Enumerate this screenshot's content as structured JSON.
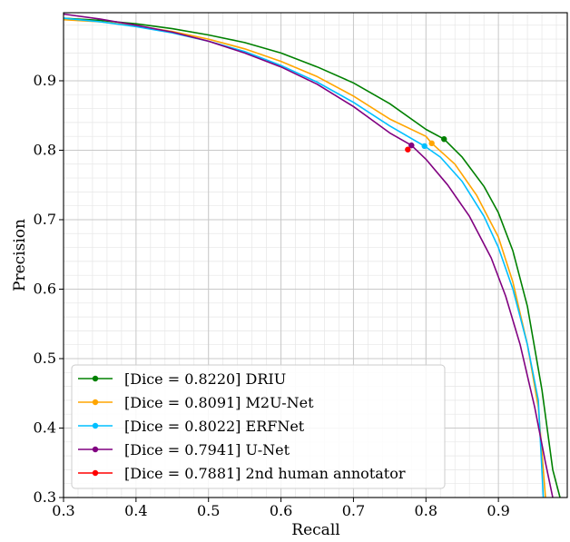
{
  "chart_data": {
    "type": "line",
    "title": "",
    "xlabel": "Recall",
    "ylabel": "Precision",
    "xlim": [
      0.3,
      0.995
    ],
    "ylim": [
      0.3,
      0.998
    ],
    "x_ticks": [
      0.3,
      0.4,
      0.5,
      0.6,
      0.7,
      0.8,
      0.9
    ],
    "x_tick_labels": [
      "0.3",
      "0.4",
      "0.5",
      "0.6",
      "0.7",
      "0.8",
      "0.9"
    ],
    "y_ticks": [
      0.3,
      0.4,
      0.5,
      0.6,
      0.7,
      0.8,
      0.9
    ],
    "y_tick_labels": [
      "0.3",
      "0.4",
      "0.5",
      "0.6",
      "0.7",
      "0.8",
      "0.9"
    ],
    "grid": "major and minor",
    "legend_position": "lower-left",
    "series": [
      {
        "name": "[Dice = 0.8220] DRIU",
        "color": "#008000",
        "x": [
          0.3,
          0.35,
          0.4,
          0.45,
          0.5,
          0.55,
          0.6,
          0.65,
          0.7,
          0.75,
          0.8,
          0.825,
          0.85,
          0.88,
          0.9,
          0.92,
          0.94,
          0.96,
          0.975,
          0.985
        ],
        "y": [
          0.99,
          0.987,
          0.982,
          0.975,
          0.966,
          0.955,
          0.94,
          0.92,
          0.897,
          0.867,
          0.83,
          0.816,
          0.79,
          0.748,
          0.71,
          0.655,
          0.575,
          0.455,
          0.34,
          0.3
        ],
        "operating_point": [
          0.825,
          0.816
        ]
      },
      {
        "name": "[Dice = 0.8091] M2U-Net",
        "color": "#FFA500",
        "x": [
          0.3,
          0.35,
          0.4,
          0.45,
          0.5,
          0.55,
          0.6,
          0.65,
          0.7,
          0.75,
          0.8,
          0.808,
          0.84,
          0.87,
          0.9,
          0.92,
          0.94,
          0.955,
          0.965
        ],
        "y": [
          0.988,
          0.985,
          0.979,
          0.971,
          0.96,
          0.946,
          0.928,
          0.906,
          0.878,
          0.845,
          0.82,
          0.81,
          0.78,
          0.735,
          0.675,
          0.61,
          0.52,
          0.43,
          0.3
        ],
        "operating_point": [
          0.808,
          0.81
        ]
      },
      {
        "name": "[Dice = 0.8022] ERFNet",
        "color": "#00BFFF",
        "x": [
          0.3,
          0.35,
          0.4,
          0.45,
          0.5,
          0.55,
          0.6,
          0.65,
          0.7,
          0.75,
          0.798,
          0.82,
          0.85,
          0.88,
          0.9,
          0.92,
          0.94,
          0.955,
          0.962
        ],
        "y": [
          0.99,
          0.985,
          0.978,
          0.969,
          0.957,
          0.942,
          0.922,
          0.898,
          0.869,
          0.835,
          0.806,
          0.79,
          0.755,
          0.705,
          0.66,
          0.6,
          0.52,
          0.44,
          0.3
        ],
        "operating_point": [
          0.798,
          0.806
        ]
      },
      {
        "name": "[Dice = 0.7941] U-Net",
        "color": "#800080",
        "x": [
          0.3,
          0.35,
          0.4,
          0.45,
          0.5,
          0.55,
          0.6,
          0.65,
          0.7,
          0.75,
          0.78,
          0.8,
          0.83,
          0.86,
          0.89,
          0.91,
          0.93,
          0.95,
          0.965,
          0.975
        ],
        "y": [
          0.996,
          0.989,
          0.98,
          0.97,
          0.957,
          0.94,
          0.92,
          0.895,
          0.863,
          0.825,
          0.807,
          0.787,
          0.75,
          0.705,
          0.645,
          0.59,
          0.52,
          0.43,
          0.35,
          0.3
        ],
        "operating_point": [
          0.78,
          0.807
        ]
      },
      {
        "name": "[Dice = 0.7881] 2nd human annotator",
        "color": "#FF0000",
        "x": [
          0.775
        ],
        "y": [
          0.801
        ],
        "operating_point": [
          0.775,
          0.801
        ]
      }
    ]
  }
}
